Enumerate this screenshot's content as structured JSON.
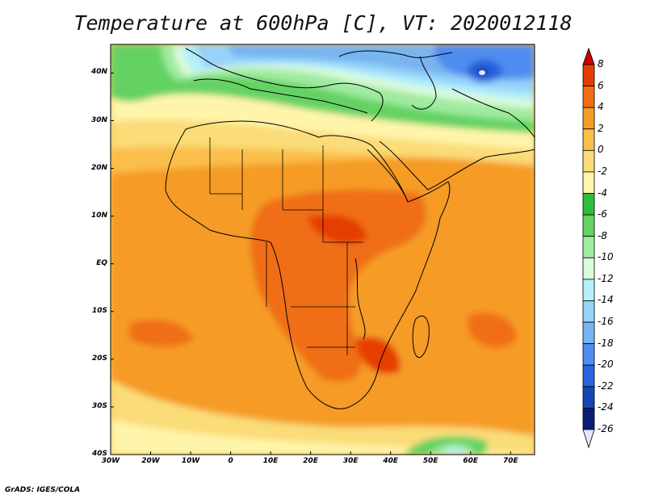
{
  "title": "Temperature at 600hPa [C], VT: 2020012118",
  "credit": "GrADS: IGES/COLA",
  "map": {
    "projection": "lat-lon",
    "lon_range": [
      -30,
      76
    ],
    "lat_range": [
      -40,
      46
    ],
    "lat_ticks": [
      {
        "value": 40,
        "label": "40N"
      },
      {
        "value": 30,
        "label": "30N"
      },
      {
        "value": 20,
        "label": "20N"
      },
      {
        "value": 10,
        "label": "10N"
      },
      {
        "value": 0,
        "label": "EQ"
      },
      {
        "value": -10,
        "label": "10S"
      },
      {
        "value": -20,
        "label": "20S"
      },
      {
        "value": -30,
        "label": "30S"
      },
      {
        "value": -40,
        "label": "40S"
      }
    ],
    "lon_ticks": [
      {
        "value": -30,
        "label": "30W"
      },
      {
        "value": -20,
        "label": "20W"
      },
      {
        "value": -10,
        "label": "10W"
      },
      {
        "value": 0,
        "label": "0"
      },
      {
        "value": 10,
        "label": "10E"
      },
      {
        "value": 20,
        "label": "20E"
      },
      {
        "value": 30,
        "label": "30E"
      },
      {
        "value": 40,
        "label": "40E"
      },
      {
        "value": 50,
        "label": "50E"
      },
      {
        "value": 60,
        "label": "60E"
      },
      {
        "value": 70,
        "label": "70E"
      }
    ]
  },
  "colorbar": {
    "labels": [
      "8",
      "6",
      "4",
      "2",
      "0",
      "-2",
      "-4",
      "-6",
      "-8",
      "-10",
      "-12",
      "-14",
      "-16",
      "-18",
      "-20",
      "-22",
      "-24",
      "-26"
    ],
    "colors": [
      "#c80000",
      "#e63c00",
      "#f06e12",
      "#f59b28",
      "#fabe4b",
      "#fadc78",
      "#fff5aa",
      "#2dbe3c",
      "#64d264",
      "#a0eba0",
      "#dcfadc",
      "#b4f0fa",
      "#96d2fa",
      "#78b4f0",
      "#508cf0",
      "#2864dc",
      "#1446b4",
      "#0a1e78",
      "#e6e6ff"
    ]
  },
  "colors": {
    "coast": "#000000",
    "cold_core": "#1446b4",
    "warm_core": "#e63c00"
  }
}
